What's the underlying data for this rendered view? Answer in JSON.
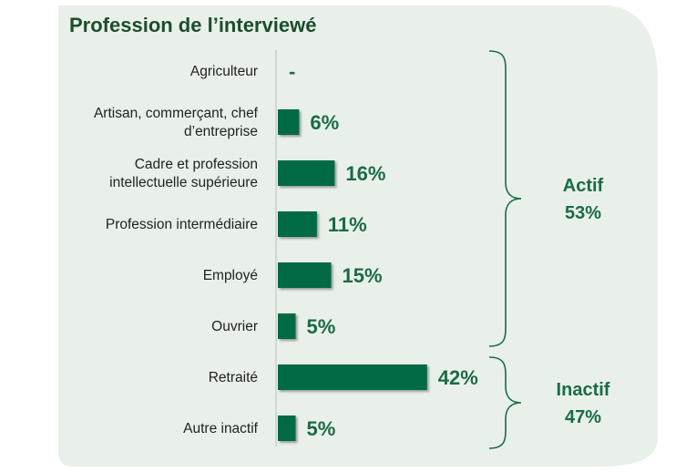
{
  "chart_data": {
    "type": "bar",
    "orientation": "horizontal",
    "title": "Profession de l’interviewé",
    "unit": "%",
    "categories": [
      [
        "Agriculteur"
      ],
      [
        "Artisan, commerçant, chef",
        "d’entreprise"
      ],
      [
        "Cadre et profession",
        "intellectuelle supérieure"
      ],
      [
        "Profession intermédiaire"
      ],
      [
        "Employé"
      ],
      [
        "Ouvrier"
      ],
      [
        "Retraité"
      ],
      [
        "Autre inactif"
      ]
    ],
    "values": [
      0,
      6,
      16,
      11,
      15,
      5,
      42,
      5
    ],
    "value_labels": [
      "-",
      "6%",
      "16%",
      "11%",
      "15%",
      "5%",
      "42%",
      "5%"
    ],
    "groups": [
      {
        "name": "Actif",
        "total": "53%",
        "from": 0,
        "to": 5
      },
      {
        "name": "Inactif",
        "total": "47%",
        "from": 6,
        "to": 7
      }
    ],
    "colors": {
      "bar": "#006b45",
      "panel": "#e9f0ea",
      "text_accent": "#1a6b45",
      "title": "#1d4d2c"
    }
  }
}
